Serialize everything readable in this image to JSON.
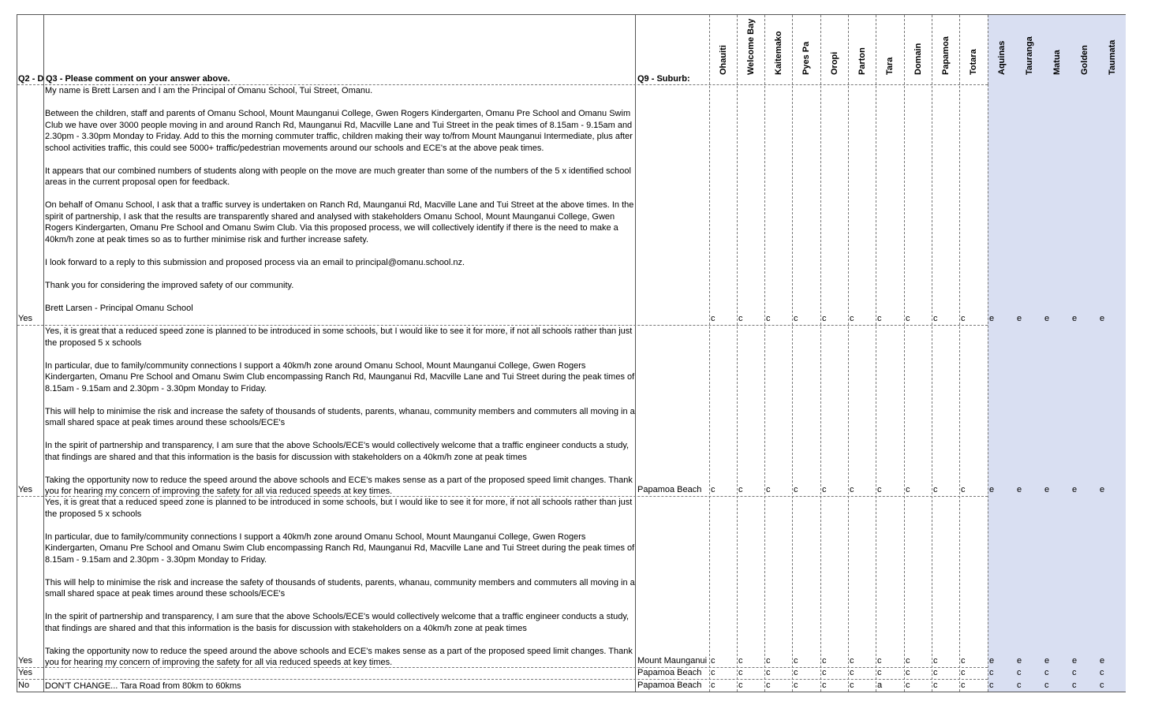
{
  "headers": {
    "q2": "Q2 - D",
    "q3": "Q3 - Please comment on your answer above.",
    "q9": "Q9 - Suburb:",
    "locations": [
      "Ohauiti",
      "Welcome Bay",
      "Kaitemako",
      "Pyes Pa",
      "Oropi",
      "Parton",
      "Tara",
      "Domain",
      "Papamoa",
      "Totara",
      "Aquinas",
      "Tauranga",
      "Matua",
      "Golden",
      "Taumata"
    ]
  },
  "rows": [
    {
      "q2": "Yes",
      "suburb": "",
      "comment": [
        "My name is Brett Larsen and I am the Principal of Omanu School, Tui Street, Omanu.",
        "Between the children, staff and parents of Omanu School, Mount Maunganui College, Gwen Rogers Kindergarten, Omanu Pre School and Omanu Swim Club we have over 3000 people moving in and around Ranch Rd, Maunganui Rd, Macville Lane and Tui Street in the peak times of 8.15am - 9.15am and 2.30pm - 3.30pm Monday to Friday. Add to this the morning commuter traffic, children making their way to/from Mount Maunganui Intermediate, plus after school activities traffic, this could see 5000+ traffic/pedestrian movements around our schools and ECE's at the above peak times.",
        "It appears that our combined numbers of students along with people on the move are much greater than some of the numbers of the 5 x identified school areas in the current proposal open for feedback.",
        "On behalf of Omanu School, I ask that a traffic survey is undertaken on Ranch Rd, Maunganui Rd, Macville Lane and Tui Street at the above times. In the spirit of partnership, I ask that the results are transparently shared and analysed with stakeholders Omanu School, Mount Maunganui College, Gwen Rogers Kindergarten, Omanu Pre School and Omanu Swim Club. Via this proposed process, we will collectively identify if there is the need to make a 40km/h zone at peak times so as to further minimise risk and further increase safety.",
        "I look forward to a reply to this submission and proposed process via an email to principal@omanu.school.nz.",
        "Thank you for considering the improved safety of our community.",
        "Brett Larsen - Principal Omanu School"
      ],
      "marks": [
        "c",
        "c",
        "c",
        "c",
        "c",
        "c",
        "c",
        "c",
        "c",
        "c",
        "e",
        "e",
        "e",
        "e",
        "e"
      ]
    },
    {
      "q2": "Yes",
      "suburb": "Papamoa Beach",
      "comment": [
        "Yes, it is great that a reduced speed zone is planned to be introduced in some schools, but I would like to see it for more, if not all schools rather than just the proposed 5 x schools",
        "In particular, due to family/community connections I support a  40km/h zone around Omanu School, Mount Maunganui College, Gwen Rogers Kindergarten, Omanu Pre School and Omanu Swim Club encompassing Ranch Rd, Maunganui Rd, Macville Lane and Tui Street during the peak times of 8.15am - 9.15am and 2.30pm - 3.30pm Monday to Friday.",
        "This will help to minimise the risk and increase the safety of thousands of students, parents, whanau, community members and commuters all moving in a small shared space at peak times around these schools/ECE's",
        "In the spirit of partnership and transparency, I am sure that the above Schools/ECE's would collectively welcome that a traffic engineer conducts a study, that findings are shared and that this information is the basis for discussion with stakeholders on a 40km/h zone at peak times",
        "Taking the opportunity now to reduce the speed around the above schools and ECE's makes sense as a part of the proposed speed limit changes. Thank you for hearing my concern of improving the safety for all via reduced speeds at key times."
      ],
      "marks": [
        "c",
        "c",
        "c",
        "c",
        "c",
        "c",
        "c",
        "c",
        "c",
        "c",
        "e",
        "e",
        "e",
        "e",
        "e"
      ]
    },
    {
      "q2": "Yes",
      "suburb": "Mount Maunganui",
      "comment": [
        "Yes, it is great that a reduced speed zone is planned to be introduced in some schools, but I would like to see it for more, if not all schools rather than just the proposed 5 x schools",
        "In particular, due to family/community connections I support a  40km/h zone around Omanu School, Mount Maunganui College, Gwen Rogers Kindergarten, Omanu Pre School and Omanu Swim Club encompassing Ranch Rd, Maunganui Rd, Macville Lane and Tui Street during the peak times of 8.15am - 9.15am and 2.30pm - 3.30pm Monday to Friday.",
        "This will help to minimise the risk and increase the safety of thousands of students, parents, whanau, community members and commuters all moving in a small shared space at peak times around these schools/ECE's",
        "In the spirit of partnership and transparency, I am sure that the above Schools/ECE's would collectively welcome that a traffic engineer conducts a study, that findings are shared and that this information is the basis for discussion with stakeholders on a 40km/h zone at peak times",
        "Taking the opportunity now to reduce the speed around the above schools and ECE's makes sense as a part of the proposed speed limit changes. Thank you for hearing my concern of improving the safety for all via reduced speeds at key times."
      ],
      "marks": [
        "c",
        "c",
        "c",
        "c",
        "c",
        "c",
        "c",
        "c",
        "c",
        "c",
        "e",
        "e",
        "e",
        "e",
        "e"
      ]
    },
    {
      "q2": "Yes",
      "suburb": "Papamoa Beach",
      "comment": [
        ""
      ],
      "marks": [
        "c",
        "c",
        "c",
        "c",
        "c",
        "c",
        "c",
        "c",
        "c",
        "c",
        "c",
        "c",
        "c",
        "c",
        "c"
      ]
    },
    {
      "q2": "No",
      "suburb": "Papamoa Beach",
      "comment": [
        "DON'T CHANGE... Tara Road from 80km to 60kms"
      ],
      "marks": [
        "c",
        "c",
        "c",
        "c",
        "c",
        "c",
        "a",
        "c",
        "c",
        "c",
        "c",
        "c",
        "c",
        "c",
        "c"
      ]
    }
  ]
}
